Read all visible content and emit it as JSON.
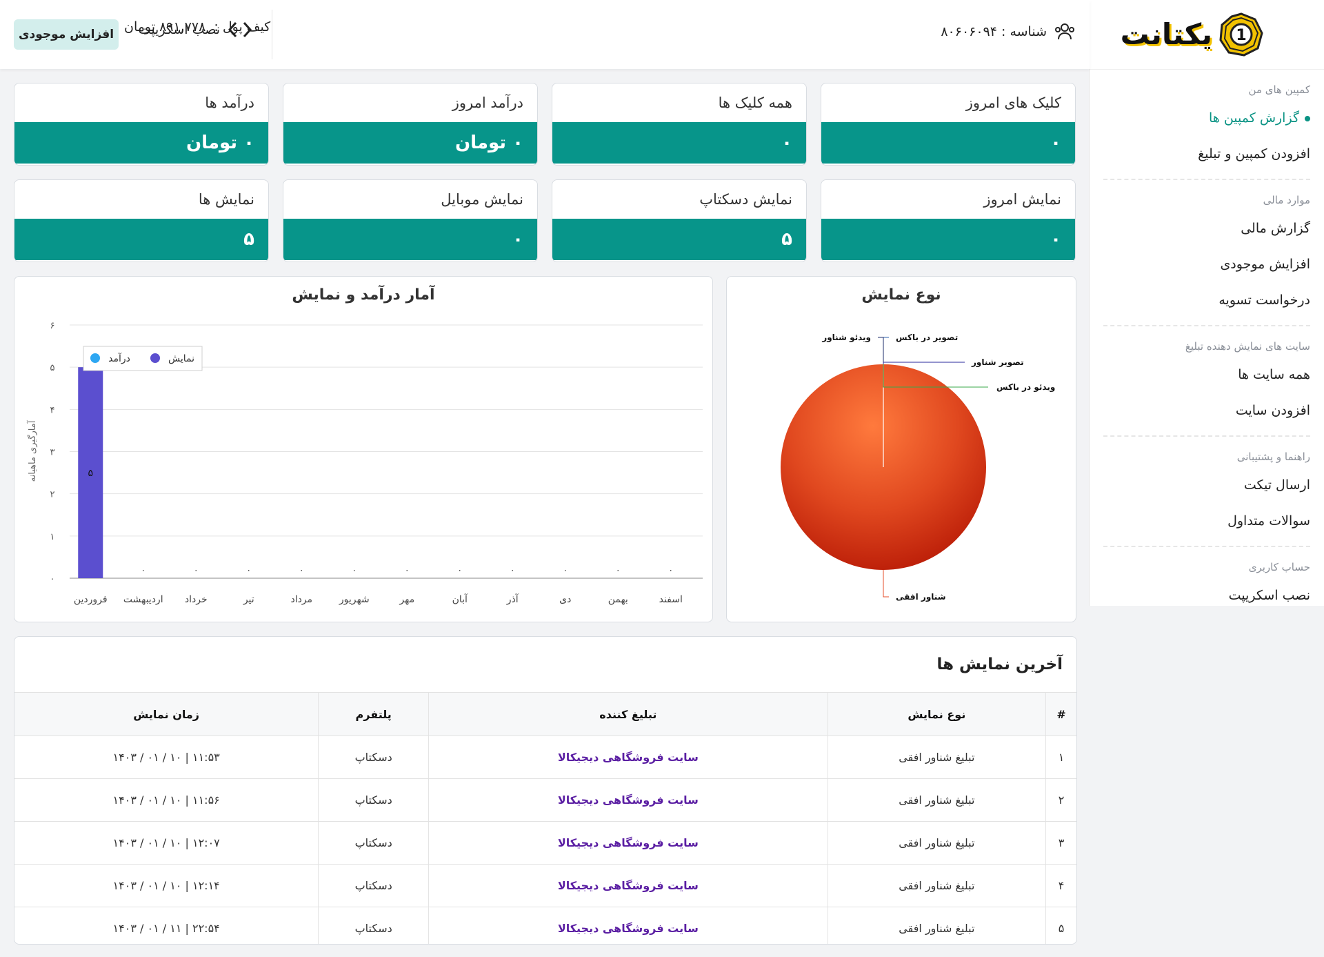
{
  "sidebar": {
    "logo_text": "یکتانت",
    "logo_badge": "1",
    "sections": [
      {
        "label": "کمپین های من",
        "items": [
          {
            "label": "گزارش کمپین ها",
            "active": true
          },
          {
            "label": "افزودن کمپین و تبلیغ"
          }
        ]
      },
      {
        "label": "موارد مالی",
        "items": [
          {
            "label": "گزارش مالی"
          },
          {
            "label": "افزایش موجودی"
          },
          {
            "label": "درخواست تسویه"
          }
        ]
      },
      {
        "label": "سایت های نمایش دهنده تبلیغ",
        "items": [
          {
            "label": "همه سایت ها"
          },
          {
            "label": "افزودن سایت"
          }
        ]
      },
      {
        "label": "راهنما و پشتیبانی",
        "items": [
          {
            "label": "ارسال تیکت"
          },
          {
            "label": "سوالات متداول"
          }
        ]
      },
      {
        "label": "حساب کاربری",
        "items": [
          {
            "label": "نصب اسکریپت"
          }
        ]
      }
    ]
  },
  "topbar": {
    "id_label": "شناسه : ۸۰۶۰۶۰۹۴",
    "script_label": "نصب اسکریپت",
    "wallet_label": "کیف پول :",
    "wallet_value": "۸۹۱,۷۷۸ تومان",
    "add_balance_button": "افزایش موجودی"
  },
  "stats": [
    {
      "title": "کلیک های امروز",
      "value": "۰"
    },
    {
      "title": "همه کلیک ها",
      "value": "۰"
    },
    {
      "title": "درآمد امروز",
      "value": "۰ تومان"
    },
    {
      "title": "درآمد ها",
      "value": "۰ تومان"
    },
    {
      "title": "نمایش امروز",
      "value": "۰"
    },
    {
      "title": "نمایش دسکتاپ",
      "value": "۵"
    },
    {
      "title": "نمایش موبایل",
      "value": "۰"
    },
    {
      "title": "نمایش ها",
      "value": "۵"
    }
  ],
  "chart_data": [
    {
      "type": "bar",
      "title": "آمار درآمد و نمایش",
      "ylabel": "آمارگیری ماهیانه",
      "categories": [
        "فروردین",
        "اردیبهشت",
        "خرداد",
        "تیر",
        "مرداد",
        "شهریور",
        "مهر",
        "آبان",
        "آذر",
        "دی",
        "بهمن",
        "اسفند"
      ],
      "ylim": [
        0,
        6
      ],
      "yticks": [
        "۰",
        "۱",
        "۲",
        "۳",
        "۴",
        "۵",
        "۶"
      ],
      "series": [
        {
          "name": "نمایش",
          "color": "#5b4fcf",
          "values": [
            5,
            0,
            0,
            0,
            0,
            0,
            0,
            0,
            0,
            0,
            0,
            0
          ]
        },
        {
          "name": "درآمد",
          "color": "#2ea7f2",
          "values": [
            0,
            0,
            0,
            0,
            0,
            0,
            0,
            0,
            0,
            0,
            0,
            0
          ]
        }
      ],
      "data_labels": [
        "۵",
        "۰",
        "۰",
        "۰",
        "۰",
        "۰",
        "۰",
        "۰",
        "۰",
        "۰",
        "۰",
        "۰"
      ],
      "legend_position": "top-left",
      "grid": true
    },
    {
      "type": "pie",
      "title": "نوع نمایش",
      "categories": [
        "شناور افقی",
        "تصویر در باکس",
        "ویدئو شناور",
        "تصویر شناور",
        "ویدئو در باکس"
      ],
      "values": [
        5,
        0,
        0,
        0,
        0
      ],
      "colors": [
        "#e44d2a",
        "#2b5fad",
        "#1c2d6b",
        "#2a2a9e",
        "#38a84a"
      ]
    }
  ],
  "table": {
    "title": "آخرین نمایش ها",
    "headers": [
      "#",
      "نوع نمایش",
      "تبلیغ کننده",
      "پلتفرم",
      "زمان نمایش"
    ],
    "rows": [
      [
        "۱",
        "تبلیغ شناور افقی",
        "سایت فروشگاهی دیجیکالا",
        "دسکتاپ",
        "۱۴۰۳ / ۰۱ / ۱۰ | ۱۱:۵۳"
      ],
      [
        "۲",
        "تبلیغ شناور افقی",
        "سایت فروشگاهی دیجیکالا",
        "دسکتاپ",
        "۱۴۰۳ / ۰۱ / ۱۰ | ۱۱:۵۶"
      ],
      [
        "۳",
        "تبلیغ شناور افقی",
        "سایت فروشگاهی دیجیکالا",
        "دسکتاپ",
        "۱۴۰۳ / ۰۱ / ۱۰ | ۱۲:۰۷"
      ],
      [
        "۴",
        "تبلیغ شناور افقی",
        "سایت فروشگاهی دیجیکالا",
        "دسکتاپ",
        "۱۴۰۳ / ۰۱ / ۱۰ | ۱۲:۱۴"
      ],
      [
        "۵",
        "تبلیغ شناور افقی",
        "سایت فروشگاهی دیجیکالا",
        "دسکتاپ",
        "۱۴۰۳ / ۰۱ / ۱۱ | ۲۲:۵۴"
      ]
    ]
  }
}
